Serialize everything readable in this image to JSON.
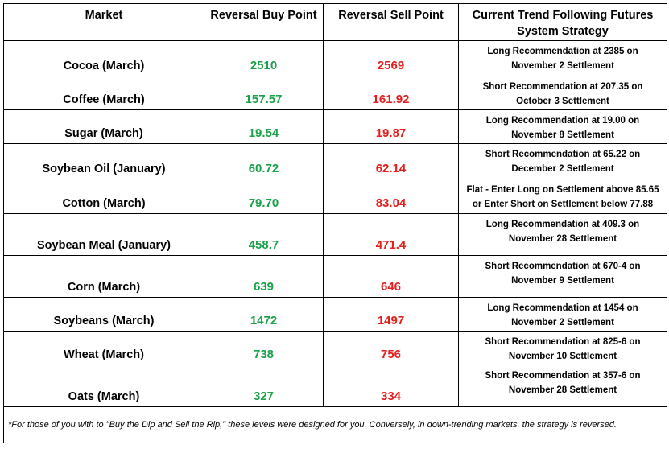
{
  "colors": {
    "buy": "#1aa14a",
    "sell": "#e61e1e"
  },
  "headers": {
    "market": "Market",
    "buy": "Reversal Buy Point",
    "sell": "Reversal Sell Point",
    "strategy_line1": "Current Trend Following Futures",
    "strategy_line2": "System Strategy"
  },
  "rows": [
    {
      "market": "Cocoa (March)",
      "buy": "2510",
      "sell": "2569",
      "s1": "Long Recommendation at 2385 on",
      "s2": "November 2 Settlement"
    },
    {
      "market": "Coffee (March)",
      "buy": "157.57",
      "sell": "161.92",
      "s1": "Short Recommendation at 207.35 on",
      "s2": "October 3 Settlement"
    },
    {
      "market": "Sugar (March)",
      "buy": "19.54",
      "sell": "19.87",
      "s1": "Long Recommendation at 19.00 on",
      "s2": "November 8 Settlement"
    },
    {
      "market": "Soybean Oil (January)",
      "buy": "60.72",
      "sell": "62.14",
      "s1": "Short Recommendation at 65.22 on",
      "s2": "December 2 Settlement"
    },
    {
      "market": "Cotton (March)",
      "buy": "79.70",
      "sell": "83.04",
      "s1": "Flat - Enter Long on Settlement above 85.65",
      "s2": "or Enter Short on Settlement below 77.88"
    },
    {
      "market": "Soybean Meal (January)",
      "buy": "458.7",
      "sell": "471.4",
      "s1": "Long Recommendation at 409.3 on",
      "s2": "November 28 Settlement"
    },
    {
      "market": "Corn (March)",
      "buy": "639",
      "sell": "646",
      "s1": "Short Recommendation at 670-4 on",
      "s2": "November 9 Settlement"
    },
    {
      "market": "Soybeans (March)",
      "buy": "1472",
      "sell": "1497",
      "s1": "Long Recommendation at 1454 on",
      "s2": "November 2 Settlement"
    },
    {
      "market": "Wheat (March)",
      "buy": "738",
      "sell": "756",
      "s1": "Short Recommendation at 825-6 on",
      "s2": "November 10 Settlement"
    },
    {
      "market": "Oats (March)",
      "buy": "327",
      "sell": "334",
      "s1": "Short Recommendation at 357-6 on",
      "s2": "November 28 Settlement"
    }
  ],
  "footer": "*For those of you with to \"Buy the Dip and Sell the Rip,\" these levels were designed for you. Conversely, in down-trending markets, the strategy is reversed."
}
